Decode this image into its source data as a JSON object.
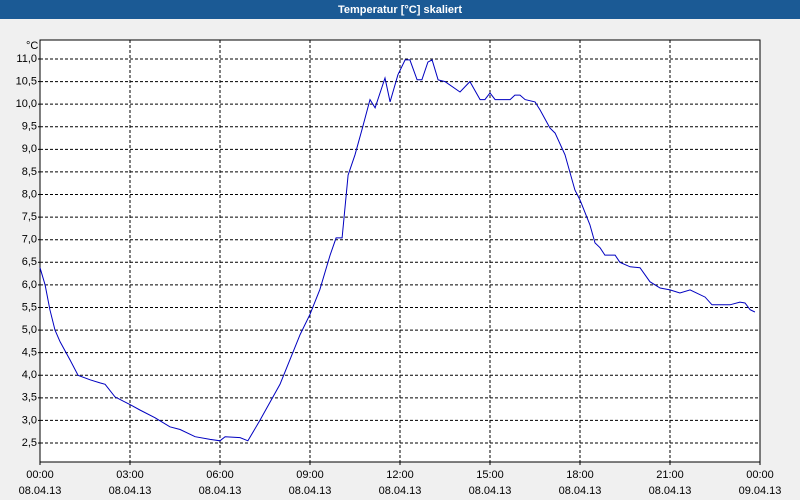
{
  "chart_data": {
    "type": "line",
    "title": "Temperatur [°C] skaliert",
    "ylabel": "°C",
    "x": [
      0,
      0.17,
      0.33,
      0.5,
      0.67,
      1.0,
      1.27,
      1.67,
      2.0,
      2.17,
      2.5,
      3.0,
      3.33,
      3.83,
      4.33,
      4.67,
      5.17,
      5.67,
      6.0,
      6.17,
      6.67,
      6.93,
      7.33,
      8.0,
      8.67,
      9.0,
      9.33,
      9.67,
      9.87,
      10.07,
      10.27,
      10.5,
      10.73,
      11.0,
      11.17,
      11.5,
      11.67,
      11.93,
      12.17,
      12.33,
      12.57,
      12.73,
      12.93,
      13.07,
      13.27,
      13.5,
      14.0,
      14.33,
      14.67,
      14.83,
      15.0,
      15.17,
      15.67,
      15.83,
      16.0,
      16.17,
      16.5,
      16.67,
      17.0,
      17.17,
      17.5,
      17.83,
      18.0,
      18.33,
      18.5,
      18.67,
      18.83,
      19.17,
      19.33,
      19.67,
      20.0,
      20.33,
      20.67,
      21.0,
      21.33,
      21.67,
      22.17,
      22.4,
      23.0,
      23.33,
      23.5,
      23.67,
      23.83
    ],
    "values": [
      6.38,
      6.0,
      5.45,
      5.0,
      4.74,
      4.34,
      4.0,
      3.9,
      3.83,
      3.8,
      3.52,
      3.35,
      3.23,
      3.06,
      2.86,
      2.8,
      2.64,
      2.58,
      2.55,
      2.64,
      2.62,
      2.55,
      3.0,
      3.8,
      4.9,
      5.35,
      5.9,
      6.66,
      7.04,
      7.04,
      8.43,
      8.88,
      9.43,
      10.1,
      9.92,
      10.58,
      10.05,
      10.65,
      10.98,
      10.98,
      10.54,
      10.54,
      10.93,
      10.98,
      10.54,
      10.5,
      10.27,
      10.5,
      10.1,
      10.1,
      10.25,
      10.1,
      10.1,
      10.2,
      10.2,
      10.1,
      10.05,
      9.87,
      9.47,
      9.36,
      8.88,
      8.1,
      7.88,
      7.33,
      6.93,
      6.82,
      6.66,
      6.66,
      6.5,
      6.4,
      6.38,
      6.07,
      5.93,
      5.89,
      5.82,
      5.89,
      5.73,
      5.56,
      5.56,
      5.62,
      5.6,
      5.45,
      5.4
    ],
    "color": "#0000c0",
    "xlim": [
      0,
      24
    ],
    "xticks": [
      {
        "value": 0,
        "label": "00:00"
      },
      {
        "value": 3,
        "label": "03:00"
      },
      {
        "value": 6,
        "label": "06:00"
      },
      {
        "value": 9,
        "label": "09:00"
      },
      {
        "value": 12,
        "label": "12:00"
      },
      {
        "value": 15,
        "label": "15:00"
      },
      {
        "value": 18,
        "label": "18:00"
      },
      {
        "value": 21,
        "label": "21:00"
      },
      {
        "value": 24,
        "label": "00:00"
      }
    ],
    "xtick_dates": [
      "08.04.13",
      "08.04.13",
      "08.04.13",
      "08.04.13",
      "08.04.13",
      "08.04.13",
      "08.04.13",
      "08.04.13",
      "09.04.13"
    ],
    "ylim": [
      2.08,
      11.42
    ],
    "yticks": [
      {
        "value": 2.5,
        "label": "2,5"
      },
      {
        "value": 3,
        "label": "3,0"
      },
      {
        "value": 3.5,
        "label": "3,5"
      },
      {
        "value": 4,
        "label": "4,0"
      },
      {
        "value": 4.5,
        "label": "4,5"
      },
      {
        "value": 5,
        "label": "5,0"
      },
      {
        "value": 5.5,
        "label": "5,5"
      },
      {
        "value": 6,
        "label": "6,0"
      },
      {
        "value": 6.5,
        "label": "6,5"
      },
      {
        "value": 7,
        "label": "7,0"
      },
      {
        "value": 7.5,
        "label": "7,5"
      },
      {
        "value": 8,
        "label": "8,0"
      },
      {
        "value": 8.5,
        "label": "8,5"
      },
      {
        "value": 9,
        "label": "9,0"
      },
      {
        "value": 9.5,
        "label": "9,5"
      },
      {
        "value": 10,
        "label": "10,0"
      },
      {
        "value": 10.5,
        "label": "10,5"
      },
      {
        "value": 11,
        "label": "11,0"
      }
    ],
    "grid": true
  }
}
